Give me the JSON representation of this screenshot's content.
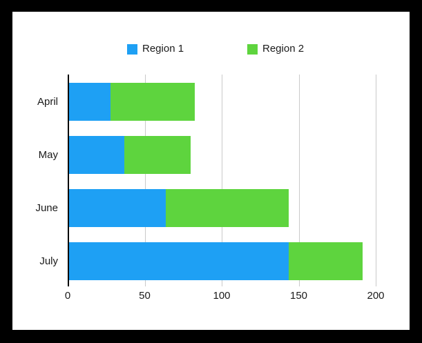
{
  "chart_data": {
    "type": "bar",
    "orientation": "horizontal",
    "stacked": true,
    "title": "",
    "categories": [
      "April",
      "May",
      "June",
      "July"
    ],
    "series": [
      {
        "name": "Region 1",
        "color": "#1EA0F4",
        "values": [
          27,
          36,
          63,
          143
        ]
      },
      {
        "name": "Region 2",
        "color": "#5ED43E",
        "values": [
          55,
          43,
          80,
          48
        ]
      }
    ],
    "x_axis": {
      "min": 0,
      "max": 200,
      "ticks": [
        0,
        50,
        100,
        150,
        200
      ]
    },
    "grid": true,
    "legend_position": "top"
  },
  "colors": {
    "background": "#000000",
    "panel": "#ffffff",
    "gridline": "#c9c9c9",
    "axis": "#000000",
    "text": "#1a1a1a"
  }
}
